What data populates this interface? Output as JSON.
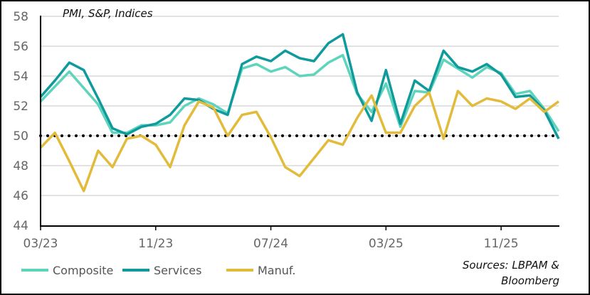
{
  "chart_data": {
    "type": "line",
    "title": "PMI, S&P, Indices",
    "source": [
      "Sources: LBPAM &",
      "Bloomberg"
    ],
    "xlabel": "",
    "ylabel": "",
    "ylim": [
      44,
      58
    ],
    "yticks": [
      44,
      46,
      48,
      50,
      52,
      54,
      56,
      58
    ],
    "reference_line": {
      "value": 50,
      "style": "dotted",
      "color": "#000000"
    },
    "x": [
      "03/23",
      "04/23",
      "05/23",
      "06/23",
      "07/23",
      "08/23",
      "09/23",
      "10/23",
      "11/23",
      "12/23",
      "01/24",
      "02/24",
      "03/24",
      "04/24",
      "05/24",
      "06/24",
      "07/24",
      "08/24",
      "09/24",
      "10/24",
      "11/24",
      "12/24",
      "01/25",
      "02/25",
      "03/25",
      "04/25",
      "05/25",
      "06/25",
      "07/25",
      "08/25",
      "09/25",
      "10/25",
      "11/25",
      "12/25",
      "01/26",
      "02/26",
      "03/26"
    ],
    "xtick_labels": [
      "03/23",
      "11/23",
      "07/24",
      "03/25",
      "11/25"
    ],
    "grid": true,
    "legend_position": "bottom",
    "series": [
      {
        "name": "Composite",
        "color": "#5fd4bc",
        "values": [
          52.3,
          53.3,
          54.3,
          53.2,
          52.1,
          50.2,
          50.2,
          50.7,
          50.7,
          50.9,
          52.0,
          52.5,
          52.1,
          51.5,
          54.5,
          54.8,
          54.3,
          54.6,
          54.0,
          54.1,
          54.9,
          55.4,
          52.8,
          51.6,
          53.5,
          50.6,
          53.0,
          52.9,
          55.1,
          54.5,
          53.9,
          54.6,
          54.2,
          52.8,
          53.0,
          51.8,
          50.3
        ]
      },
      {
        "name": "Services",
        "color": "#0f9a9c",
        "values": [
          52.6,
          53.7,
          54.9,
          54.4,
          52.5,
          50.5,
          50.1,
          50.6,
          50.8,
          51.4,
          52.5,
          52.4,
          51.8,
          51.4,
          54.8,
          55.3,
          55.0,
          55.7,
          55.2,
          55.0,
          56.2,
          56.8,
          52.9,
          51.0,
          54.4,
          50.8,
          53.7,
          53.0,
          55.7,
          54.6,
          54.3,
          54.8,
          54.1,
          52.6,
          52.7,
          51.7,
          49.8
        ]
      },
      {
        "name": "Manuf.",
        "color": "#e3bb3b",
        "values": [
          49.2,
          50.2,
          48.3,
          46.3,
          49.0,
          47.9,
          49.8,
          50.0,
          49.4,
          47.9,
          50.7,
          52.3,
          51.9,
          50.0,
          51.4,
          51.6,
          49.9,
          47.9,
          47.3,
          48.5,
          49.7,
          49.4,
          51.2,
          52.7,
          50.2,
          50.2,
          52.0,
          52.9,
          49.8,
          53.0,
          52.0,
          52.5,
          52.3,
          51.8,
          52.5,
          51.6,
          52.3
        ]
      }
    ]
  }
}
